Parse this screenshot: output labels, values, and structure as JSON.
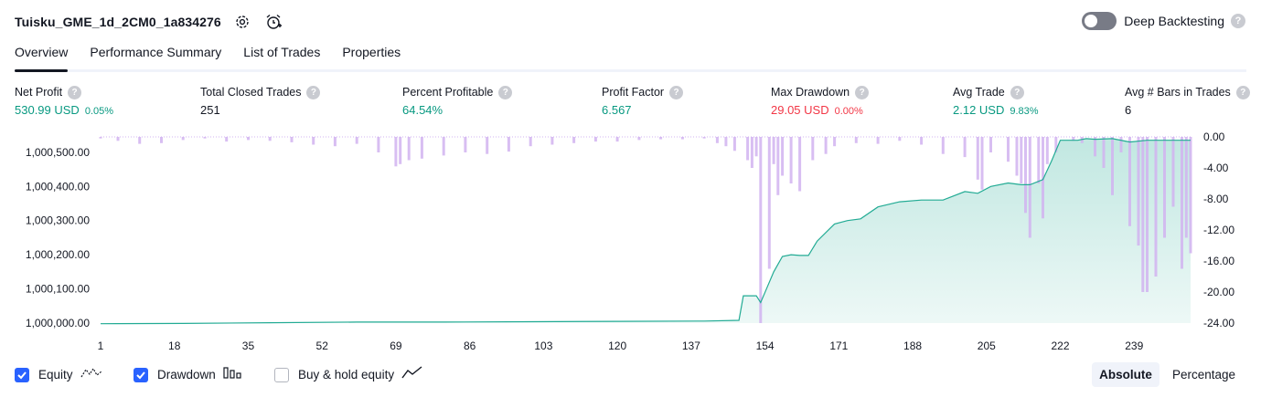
{
  "header": {
    "title": "Tuisku_GME_1d_2CM0_1a834276",
    "settings_icon": "gear-icon",
    "alert_icon": "add-alert-clock-icon",
    "deep_backtesting_label": "Deep Backtesting",
    "deep_backtesting_enabled": false,
    "help_glyph": "?"
  },
  "tabs": [
    {
      "label": "Overview",
      "active": true
    },
    {
      "label": "Performance Summary",
      "active": false
    },
    {
      "label": "List of Trades",
      "active": false
    },
    {
      "label": "Properties",
      "active": false
    }
  ],
  "metrics": [
    {
      "label": "Net Profit",
      "value": "530.99 USD",
      "pct": "0.05%",
      "color": "green"
    },
    {
      "label": "Total Closed Trades",
      "value": "251",
      "pct": "",
      "color": "dark"
    },
    {
      "label": "Percent Profitable",
      "value": "64.54%",
      "pct": "",
      "color": "green"
    },
    {
      "label": "Profit Factor",
      "value": "6.567",
      "pct": "",
      "color": "green"
    },
    {
      "label": "Max Drawdown",
      "value": "29.05 USD",
      "pct": "0.00%",
      "color": "red"
    },
    {
      "label": "Avg Trade",
      "value": "2.12 USD",
      "pct": "9.83%",
      "color": "green"
    },
    {
      "label": "Avg # Bars in Trades",
      "value": "6",
      "pct": "",
      "color": "dark"
    }
  ],
  "colors": {
    "equity_line": "#22ab94",
    "equity_fill": "#22ab94",
    "drawdown_bar": "#d1b3f0",
    "accent": "#2962ff",
    "profit": "#089981",
    "loss": "#f23645"
  },
  "chart_data": {
    "type": "area",
    "x_ticks": [
      "1",
      "18",
      "35",
      "52",
      "69",
      "86",
      "103",
      "120",
      "137",
      "154",
      "171",
      "188",
      "205",
      "222",
      "239"
    ],
    "left_axis_ticks": [
      "1,000,000.00",
      "1,000,100.00",
      "1,000,200.00",
      "1,000,300.00",
      "1,000,400.00",
      "1,000,500.00"
    ],
    "right_axis_ticks": [
      "0.00",
      "-4.00",
      "-8.00",
      "-12.00",
      "-16.00",
      "-20.00",
      "-24.00"
    ],
    "x_range": [
      1,
      252
    ],
    "equity_ylim": [
      1000000,
      1000545
    ],
    "drawdown_ylim": [
      -24,
      0
    ],
    "series": [
      {
        "name": "Equity",
        "type": "area",
        "x": [
          1,
          20,
          40,
          60,
          80,
          100,
          120,
          140,
          148,
          149,
          152,
          153,
          154,
          156,
          158,
          160,
          162,
          164,
          166,
          170,
          173,
          176,
          180,
          185,
          190,
          195,
          200,
          203,
          206,
          210,
          213,
          215,
          218,
          220,
          222,
          226,
          228,
          230,
          234,
          238,
          242,
          246,
          252
        ],
        "y": [
          999998,
          999999,
          1000001,
          1000003,
          1000003,
          1000004,
          1000005,
          1000006,
          1000008,
          1000080,
          1000080,
          1000060,
          1000090,
          1000150,
          1000195,
          1000200,
          1000198,
          1000198,
          1000240,
          1000290,
          1000300,
          1000305,
          1000340,
          1000355,
          1000360,
          1000360,
          1000385,
          1000380,
          1000400,
          1000410,
          1000405,
          1000405,
          1000420,
          1000475,
          1000535,
          1000535,
          1000540,
          1000538,
          1000540,
          1000530,
          1000535,
          1000535,
          1000535
        ]
      },
      {
        "name": "Drawdown",
        "type": "bar",
        "x": [
          1,
          5,
          10,
          15,
          20,
          25,
          30,
          35,
          40,
          45,
          50,
          55,
          60,
          65,
          69,
          70,
          72,
          75,
          80,
          85,
          90,
          95,
          100,
          105,
          110,
          115,
          120,
          125,
          130,
          135,
          140,
          143,
          145,
          147,
          150,
          151,
          152,
          153,
          155,
          156,
          157,
          158,
          160,
          162,
          165,
          168,
          170,
          175,
          180,
          185,
          190,
          195,
          200,
          203,
          204,
          206,
          210,
          212,
          213,
          214,
          215,
          217,
          218,
          219,
          221,
          225,
          227,
          230,
          232,
          234,
          236,
          238,
          240,
          241,
          242,
          244,
          246,
          248,
          250,
          251,
          252
        ],
        "y": [
          -0.2,
          -0.5,
          -0.9,
          -0.8,
          -0.4,
          -0.2,
          -0.6,
          -0.4,
          -0.5,
          -0.7,
          -1.0,
          -1.2,
          -0.9,
          -2.0,
          -3.8,
          -3.5,
          -3.0,
          -2.8,
          -2.4,
          -2.0,
          -2.2,
          -1.9,
          -1.2,
          -1.0,
          -0.8,
          -0.6,
          -0.6,
          -0.4,
          -0.3,
          -0.3,
          -0.2,
          -0.8,
          -1.2,
          -1.8,
          -3.0,
          -4.0,
          -2.5,
          -24.0,
          -17.0,
          -3.5,
          -7.5,
          -5.0,
          -6.0,
          -7.0,
          -3.0,
          -2.2,
          -1.2,
          -0.8,
          -0.9,
          -0.5,
          -1.0,
          -2.2,
          -2.6,
          -5.5,
          -6.8,
          -2.0,
          -3.2,
          -5.0,
          -6.0,
          -9.8,
          -13.0,
          -6.0,
          -10.5,
          -3.5,
          -2.0,
          -0.5,
          -0.8,
          -2.5,
          -4.0,
          -7.5,
          -2.0,
          -11.5,
          -14.0,
          -20.0,
          -20.0,
          -18.0,
          -13.0,
          -9.0,
          -17.0,
          -13.0,
          -15.0
        ]
      }
    ],
    "legend": [
      {
        "name": "Equity",
        "checked": true,
        "icon": "equity-line-icon"
      },
      {
        "name": "Drawdown",
        "checked": true,
        "icon": "drawdown-bars-icon"
      },
      {
        "name": "Buy & hold equity",
        "checked": false,
        "icon": "buy-hold-line-icon"
      }
    ],
    "scale_modes": [
      {
        "label": "Absolute",
        "active": true
      },
      {
        "label": "Percentage",
        "active": false
      }
    ],
    "grid": false,
    "legend_placement": "bottom-left"
  }
}
